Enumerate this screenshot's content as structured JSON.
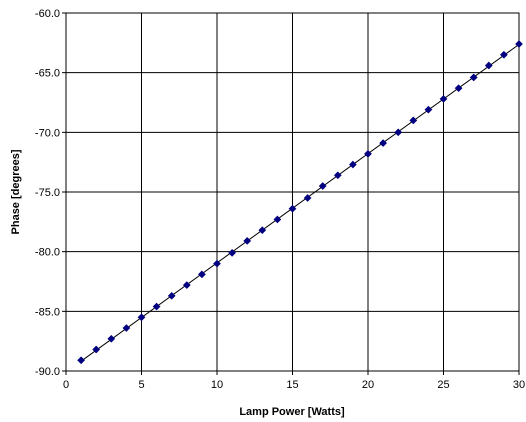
{
  "chart_data": {
    "type": "scatter",
    "xlabel": "Lamp Power [Watts]",
    "ylabel": "Phase [degrees]",
    "xlim": [
      0,
      30
    ],
    "ylim": [
      -90.0,
      -60.0
    ],
    "x_ticks": [
      0,
      5,
      10,
      15,
      20,
      25,
      30
    ],
    "x_tick_labels": [
      "0",
      "5",
      "10",
      "15",
      "20",
      "25",
      "30"
    ],
    "y_ticks": [
      -90,
      -85,
      -80,
      -75,
      -70,
      -65,
      -60
    ],
    "y_tick_labels": [
      "-90.0",
      "-85.0",
      "-80.0",
      "-75.0",
      "-70.0",
      "-65.0",
      "-60.0"
    ],
    "grid": true,
    "trendline": true,
    "series": [
      {
        "color": "#000080",
        "marker": "diamond",
        "x": [
          1,
          2,
          3,
          4,
          5,
          6,
          7,
          8,
          9,
          10,
          11,
          12,
          13,
          14,
          15,
          16,
          17,
          18,
          19,
          20,
          21,
          22,
          23,
          24,
          25,
          26,
          27,
          28,
          29,
          30
        ],
        "y": [
          -89.1,
          -88.2,
          -87.3,
          -86.4,
          -85.5,
          -84.6,
          -83.7,
          -82.8,
          -81.9,
          -81.0,
          -80.1,
          -79.1,
          -78.2,
          -77.3,
          -76.4,
          -75.5,
          -74.5,
          -73.6,
          -72.7,
          -71.8,
          -70.9,
          -70.0,
          -69.0,
          -68.1,
          -67.2,
          -66.3,
          -65.4,
          -64.4,
          -63.5,
          -62.6
        ]
      }
    ]
  }
}
